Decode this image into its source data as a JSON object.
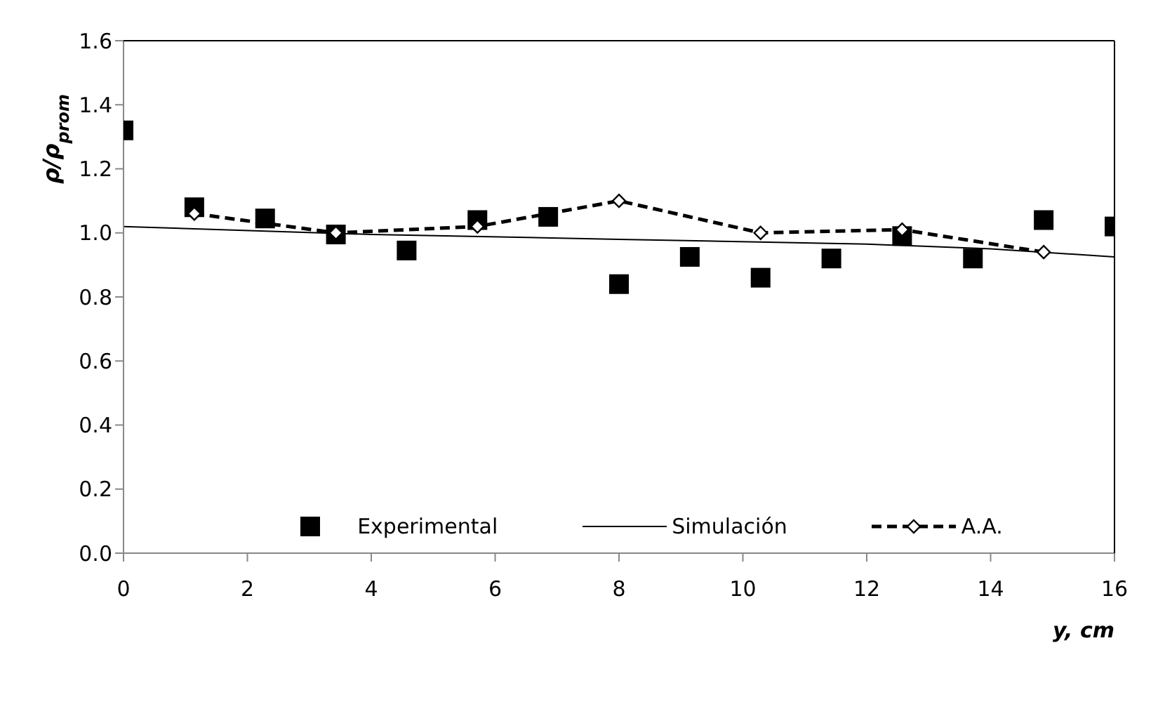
{
  "chart_data": {
    "type": "line",
    "xlabel": "y, cm",
    "ylabel": "ρ/ρ$_{prom}$",
    "xlim": [
      0,
      16
    ],
    "xticks": [
      0,
      2,
      4,
      6,
      8,
      10,
      12,
      14,
      16
    ],
    "ylim": [
      0,
      1.6
    ],
    "yticks": [
      {
        "value": 0,
        "label": "0.0"
      },
      0.2,
      0.4,
      0.6,
      0.8,
      {
        "value": 1,
        "label": "1.0"
      },
      1.2,
      1.4,
      1.6
    ],
    "grid": false,
    "legend": "bottom",
    "series": [
      {
        "name": "Experimental",
        "type": "scatter",
        "marker": "square",
        "color": "#000000",
        "x": [
          0,
          1.143,
          2.286,
          3.429,
          4.571,
          5.714,
          6.857,
          8,
          9.143,
          10.286,
          11.429,
          12.571,
          13.714,
          14.857,
          16
        ],
        "values": [
          1.32,
          1.08,
          1.045,
          0.995,
          0.945,
          1.04,
          1.05,
          0.84,
          0.925,
          0.86,
          0.92,
          0.99,
          0.92,
          1.04,
          1.02
        ]
      },
      {
        "name": "Simulación",
        "marker": "none",
        "line_style": "solid",
        "color": "#000000",
        "x": [
          0,
          4,
          8,
          12,
          14,
          16
        ],
        "values": [
          1.02,
          0.995,
          0.98,
          0.965,
          0.95,
          0.925
        ]
      },
      {
        "name": "A.A.",
        "marker": "diamond",
        "line_style": "dashed",
        "color": "#000000",
        "x": [
          1.143,
          3.429,
          5.714,
          8,
          10.286,
          12.571,
          14.857
        ],
        "values": [
          1.06,
          1.0,
          1.02,
          1.1,
          1.0,
          1.01,
          0.94
        ]
      }
    ]
  }
}
